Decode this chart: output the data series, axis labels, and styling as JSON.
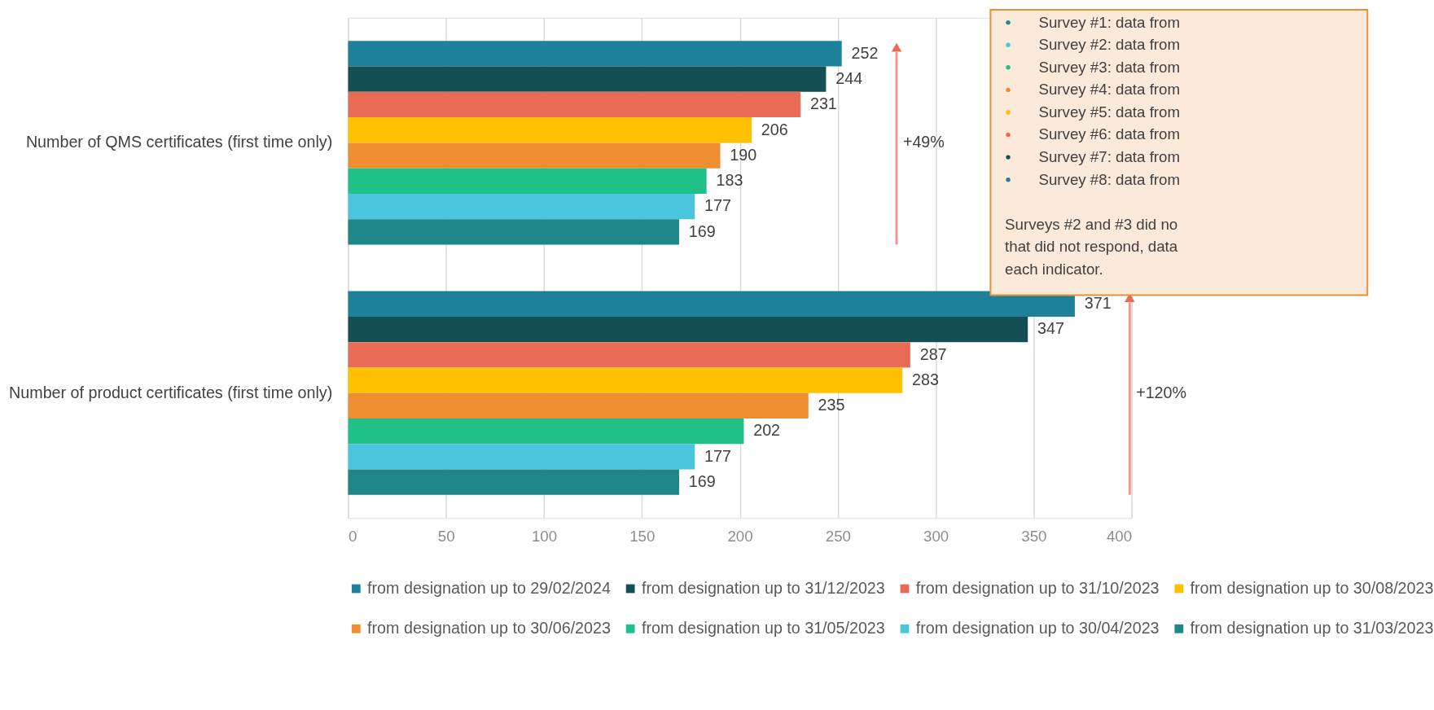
{
  "chart_data": {
    "type": "bar",
    "orientation": "horizontal",
    "categories": [
      "Number of QMS certificates (first time only)",
      "Number of product certificates (first time only)"
    ],
    "series": [
      {
        "name": "from designation up to 29/02/2024",
        "color": "#1d8299",
        "values": [
          252,
          371
        ]
      },
      {
        "name": "from designation up to 31/12/2023",
        "color": "#144f55",
        "values": [
          244,
          347
        ]
      },
      {
        "name": "from designation up to 31/10/2023",
        "color": "#e86c55",
        "values": [
          231,
          287
        ]
      },
      {
        "name": "from designation up to 30/08/2023",
        "color": "#ffc000",
        "values": [
          206,
          283
        ]
      },
      {
        "name": "from designation up to 30/06/2023",
        "color": "#ee8e30",
        "values": [
          190,
          235
        ]
      },
      {
        "name": "from designation up to 31/05/2023",
        "color": "#20c189",
        "values": [
          183,
          202
        ]
      },
      {
        "name": "from designation up to 30/04/2023",
        "color": "#4bc5dd",
        "values": [
          177,
          177
        ]
      },
      {
        "name": "from designation up to 31/03/2023",
        "color": "#1f8689",
        "values": [
          169,
          169
        ]
      }
    ],
    "xlim": [
      0,
      400
    ],
    "xticks": [
      0,
      50,
      100,
      150,
      200,
      250,
      300,
      350,
      400
    ],
    "grid": "x",
    "legend": "bottom",
    "data_labels": true,
    "annotations": [
      "+49%",
      "+120%",
      "Survey #1: data from",
      "Survey #2: data from",
      "Survey #3: data from",
      "Survey #4: data from",
      "Survey #5: data from",
      "Survey #6: data from",
      "Survey #7: data from",
      "Survey #8: data from",
      "Surveys #2 and #3 did no",
      "that did not respond, data",
      "each indicator."
    ]
  }
}
